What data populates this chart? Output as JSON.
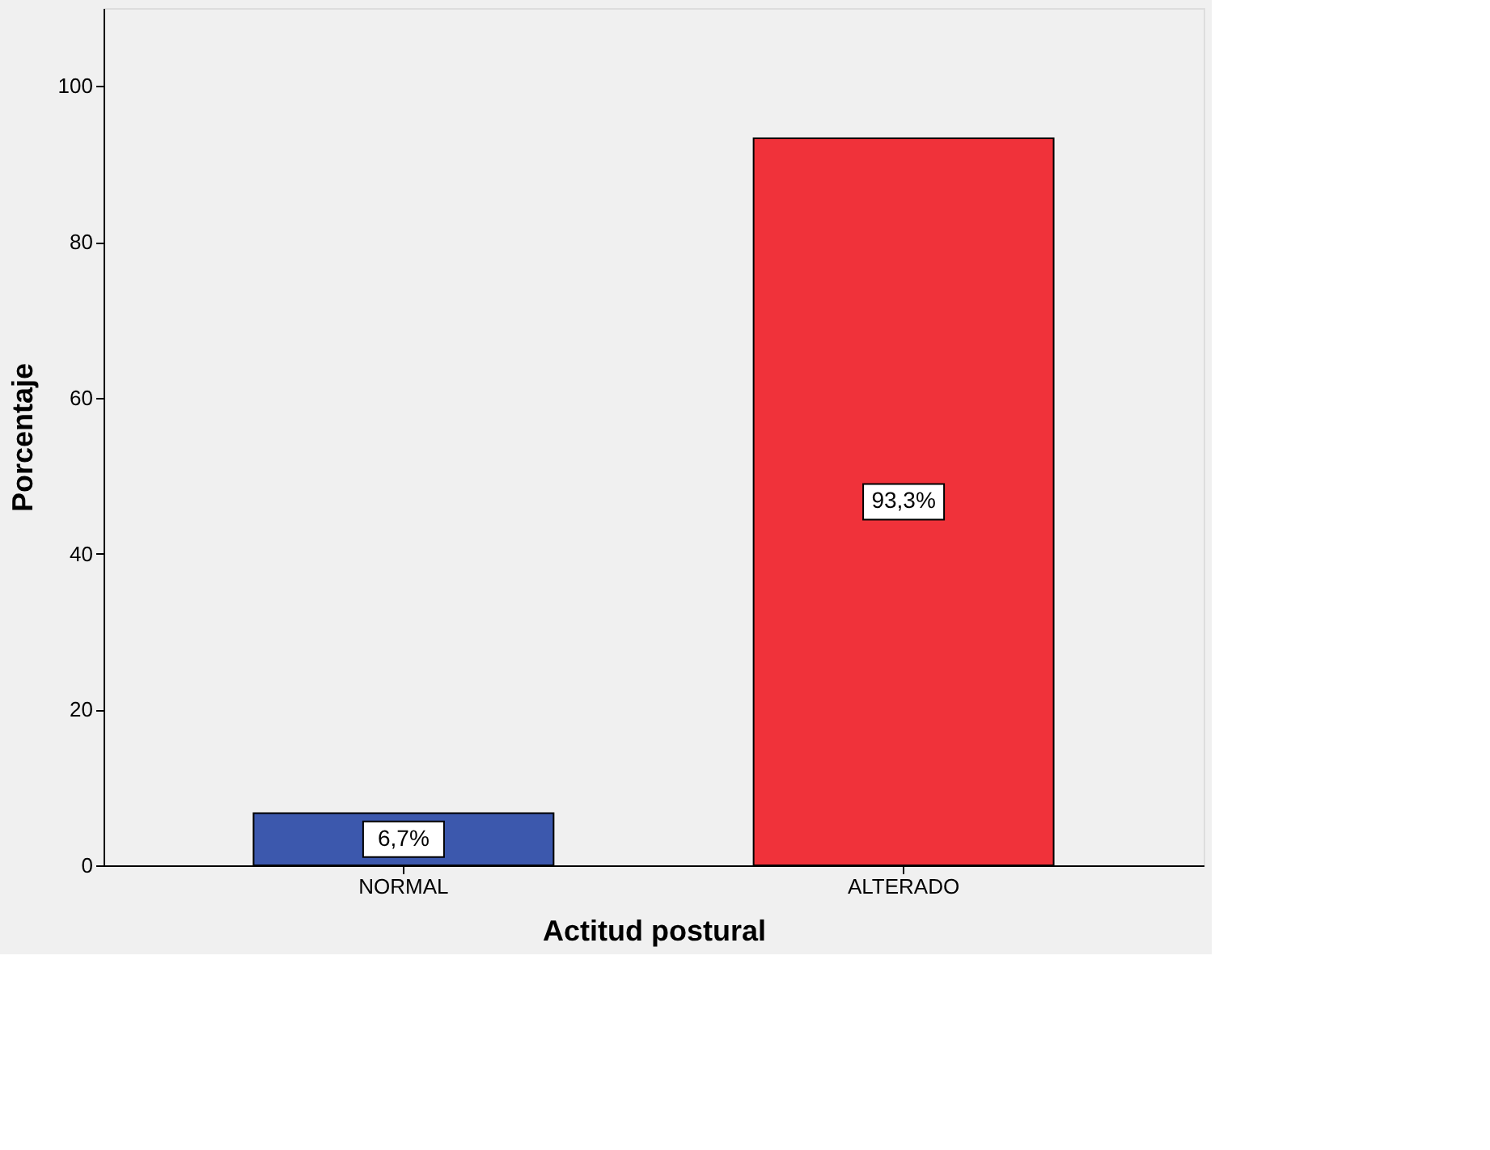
{
  "chart_data": {
    "type": "bar",
    "xlabel": "Actitud postural",
    "ylabel": "Porcentaje",
    "categories": [
      "NORMAL",
      "ALTERADO"
    ],
    "values": [
      6.7,
      93.3
    ],
    "colors": [
      "#3c58ad",
      "#f0323a"
    ],
    "value_labels": [
      "6,7%",
      "93,3%"
    ],
    "ylim": [
      0,
      110
    ],
    "yticks": [
      0,
      20,
      40,
      60,
      80,
      100
    ],
    "grid": false,
    "legend": false
  }
}
